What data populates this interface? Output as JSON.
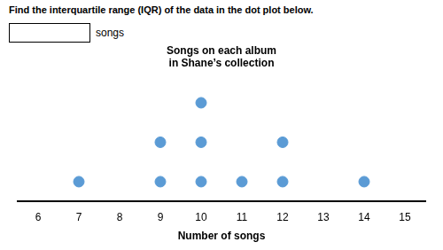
{
  "chart_data": {
    "type": "dot",
    "title": "Songs on each album\nin Shane’s collection",
    "annotations": [
      "Find the interquartile range (IQR) of the data in the dot plot below.",
      "songs"
    ],
    "xlabel": "Number of songs",
    "x": [
      7,
      9,
      10,
      11,
      12,
      14
    ],
    "values": [
      1,
      2,
      3,
      1,
      2,
      1
    ],
    "color": "#5b9bd5",
    "xlim": [
      5.5,
      15.5
    ],
    "xticks": [
      6,
      7,
      8,
      9,
      10,
      11,
      12,
      13,
      14,
      15
    ],
    "grid": false,
    "tick_labels": "x"
  }
}
